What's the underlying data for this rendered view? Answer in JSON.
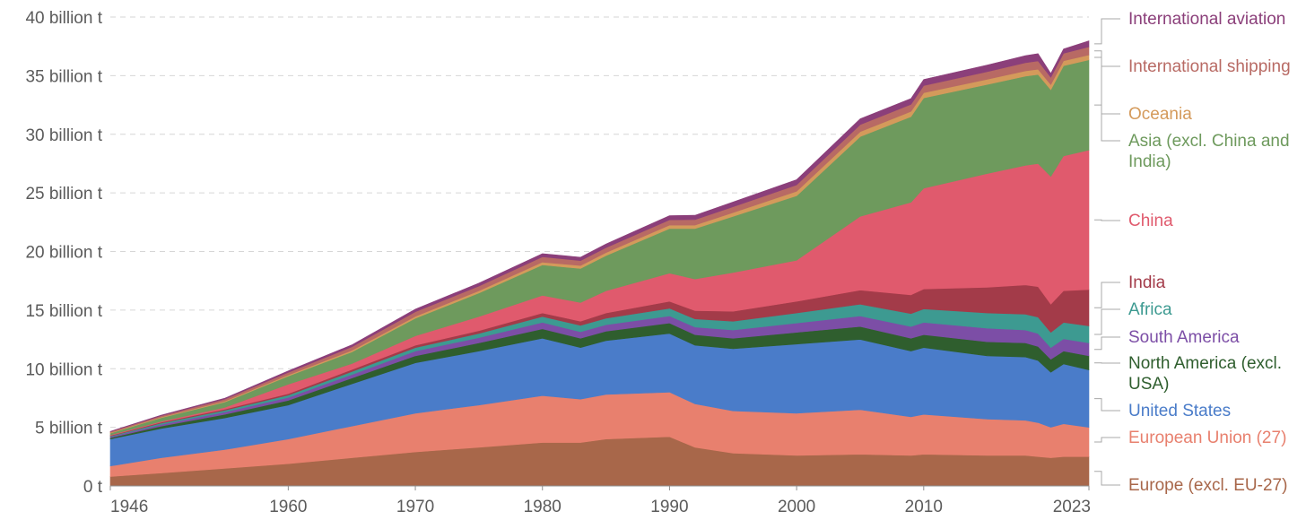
{
  "chart_data": {
    "type": "area",
    "stacked": true,
    "x": [
      1946,
      1950,
      1955,
      1960,
      1965,
      1970,
      1975,
      1980,
      1983,
      1985,
      1990,
      1992,
      1995,
      2000,
      2005,
      2009,
      2010,
      2015,
      2018,
      2019,
      2020,
      2021,
      2023
    ],
    "x_ticks": [
      "1946",
      "1960",
      "1970",
      "1980",
      "1990",
      "2000",
      "2010",
      "2023"
    ],
    "y_ticks": [
      "0 t",
      "5 billion t",
      "10 billion t",
      "15 billion t",
      "20 billion t",
      "25 billion t",
      "30 billion t",
      "35 billion t",
      "40 billion t"
    ],
    "ylim": [
      0,
      40
    ],
    "y_unit": "billion t",
    "grid": true,
    "legend_placement": "right, inline labels",
    "series": [
      {
        "name": "Europe (excl. EU-27)",
        "color": "#a8674a",
        "values": [
          0.8,
          1.1,
          1.5,
          1.9,
          2.4,
          2.9,
          3.3,
          3.7,
          3.7,
          4.0,
          4.2,
          3.3,
          2.8,
          2.6,
          2.7,
          2.6,
          2.7,
          2.6,
          2.6,
          2.5,
          2.4,
          2.5,
          2.5
        ]
      },
      {
        "name": "European Union (27)",
        "color": "#e8806e",
        "values": [
          0.9,
          1.3,
          1.6,
          2.1,
          2.7,
          3.3,
          3.6,
          4.0,
          3.7,
          3.8,
          3.8,
          3.7,
          3.6,
          3.6,
          3.8,
          3.3,
          3.4,
          3.1,
          3.0,
          2.9,
          2.6,
          2.8,
          2.5
        ]
      },
      {
        "name": "United States",
        "color": "#4a7cc9",
        "values": [
          2.3,
          2.5,
          2.7,
          2.9,
          3.6,
          4.3,
          4.6,
          4.9,
          4.4,
          4.6,
          5.0,
          5.0,
          5.3,
          5.9,
          6.0,
          5.6,
          5.7,
          5.4,
          5.4,
          5.3,
          4.7,
          5.1,
          4.9
        ]
      },
      {
        "name": "North America (excl. USA)",
        "color": "#2f5e2e",
        "values": [
          0.1,
          0.2,
          0.3,
          0.4,
          0.5,
          0.6,
          0.7,
          0.8,
          0.8,
          0.8,
          0.9,
          0.9,
          0.9,
          1.0,
          1.1,
          1.1,
          1.1,
          1.2,
          1.2,
          1.2,
          1.1,
          1.1,
          1.2
        ]
      },
      {
        "name": "South America",
        "color": "#7c4ea6",
        "values": [
          0.1,
          0.15,
          0.2,
          0.25,
          0.3,
          0.4,
          0.45,
          0.55,
          0.55,
          0.55,
          0.6,
          0.65,
          0.7,
          0.8,
          0.9,
          1.0,
          1.05,
          1.15,
          1.1,
          1.1,
          1.0,
          1.05,
          1.1
        ]
      },
      {
        "name": "Africa",
        "color": "#3d9a91",
        "values": [
          0.05,
          0.1,
          0.15,
          0.2,
          0.25,
          0.3,
          0.35,
          0.5,
          0.55,
          0.55,
          0.65,
          0.7,
          0.75,
          0.85,
          1.0,
          1.1,
          1.15,
          1.3,
          1.35,
          1.4,
          1.3,
          1.4,
          1.45
        ]
      },
      {
        "name": "India",
        "color": "#a33b49",
        "values": [
          0.05,
          0.08,
          0.1,
          0.12,
          0.18,
          0.2,
          0.25,
          0.3,
          0.35,
          0.45,
          0.6,
          0.7,
          0.85,
          1.0,
          1.2,
          1.6,
          1.7,
          2.2,
          2.5,
          2.6,
          2.4,
          2.7,
          3.1
        ]
      },
      {
        "name": "China",
        "color": "#e05a6d",
        "values": [
          0.05,
          0.08,
          0.15,
          0.8,
          0.5,
          0.8,
          1.2,
          1.5,
          1.6,
          1.9,
          2.4,
          2.7,
          3.3,
          3.5,
          6.3,
          7.9,
          8.6,
          9.7,
          10.2,
          10.5,
          10.9,
          11.5,
          11.9
        ]
      },
      {
        "name": "Asia (excl. China and India)",
        "color": "#6e9a5d",
        "values": [
          0.15,
          0.3,
          0.45,
          0.7,
          1.0,
          1.5,
          2.0,
          2.6,
          2.9,
          3.0,
          3.8,
          4.3,
          4.8,
          5.5,
          6.8,
          7.3,
          7.7,
          7.6,
          7.6,
          7.6,
          7.4,
          7.7,
          7.7
        ]
      },
      {
        "name": "Oceania",
        "color": "#d49a5b",
        "values": [
          0.05,
          0.06,
          0.08,
          0.1,
          0.13,
          0.16,
          0.2,
          0.24,
          0.25,
          0.26,
          0.3,
          0.3,
          0.32,
          0.38,
          0.42,
          0.45,
          0.44,
          0.44,
          0.45,
          0.45,
          0.43,
          0.42,
          0.42
        ]
      },
      {
        "name": "International shipping",
        "color": "#b86a64",
        "values": [
          0.08,
          0.12,
          0.17,
          0.22,
          0.3,
          0.4,
          0.4,
          0.45,
          0.42,
          0.42,
          0.45,
          0.47,
          0.5,
          0.55,
          0.6,
          0.6,
          0.62,
          0.65,
          0.7,
          0.7,
          0.63,
          0.63,
          0.68
        ]
      },
      {
        "name": "International aviation",
        "color": "#8b3f7a",
        "values": [
          0.03,
          0.05,
          0.08,
          0.12,
          0.17,
          0.22,
          0.25,
          0.28,
          0.29,
          0.31,
          0.36,
          0.37,
          0.4,
          0.45,
          0.5,
          0.5,
          0.52,
          0.57,
          0.6,
          0.63,
          0.33,
          0.38,
          0.52
        ]
      }
    ]
  }
}
